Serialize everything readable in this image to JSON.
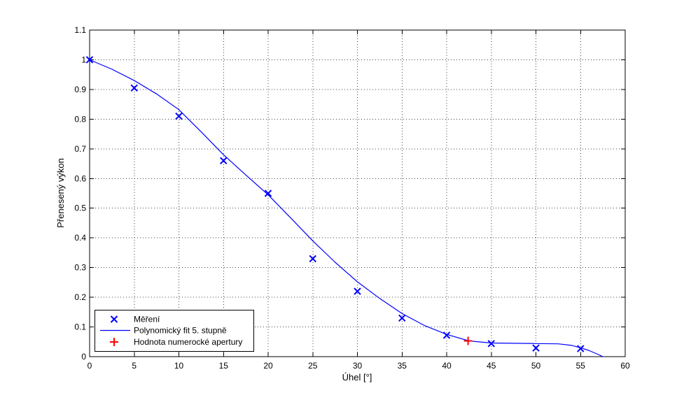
{
  "figure": {
    "background": "#ffffff"
  },
  "chart_data": {
    "type": "scatter",
    "title": "",
    "xlabel": "Úhel [°]",
    "ylabel": "Přenesený výkon",
    "xlim": [
      0,
      60
    ],
    "ylim": [
      0,
      1.1
    ],
    "grid": true,
    "x_ticks": [
      0,
      5,
      10,
      15,
      20,
      25,
      30,
      35,
      40,
      45,
      50,
      55,
      60
    ],
    "x_tick_labels": [
      "0",
      "5",
      "10",
      "15",
      "20",
      "25",
      "30",
      "35",
      "40",
      "45",
      "50",
      "55",
      "60"
    ],
    "y_ticks": [
      0,
      0.1,
      0.2,
      0.3,
      0.4,
      0.5,
      0.6,
      0.7,
      0.8,
      0.9,
      1.0,
      1.1
    ],
    "y_tick_labels": [
      "0",
      "0.1",
      "0.2",
      "0.3",
      "0.4",
      "0.5",
      "0.6",
      "0.7",
      "0.8",
      "0.9",
      "1",
      "1.1"
    ],
    "legend": {
      "position": "lower-left",
      "border": true
    },
    "series": [
      {
        "name": "Měření",
        "type": "scatter",
        "marker": "x",
        "color": "#0000ff",
        "x": [
          0,
          5,
          10,
          15,
          20,
          25,
          30,
          35,
          40,
          45,
          50,
          55
        ],
        "y": [
          1.0,
          0.905,
          0.81,
          0.66,
          0.55,
          0.33,
          0.22,
          0.13,
          0.072,
          0.044,
          0.029,
          0.027
        ]
      },
      {
        "name": "Polynomický fit 5. stupně",
        "type": "line",
        "color": "#0000ff",
        "x": [
          0,
          2.5,
          5,
          7.5,
          10,
          12.5,
          15,
          17.5,
          20,
          22.5,
          25,
          27.5,
          30,
          32.5,
          35,
          37.5,
          40,
          42.5,
          45,
          47.5,
          50,
          52.5,
          54,
          55,
          56,
          57,
          57.5
        ],
        "y": [
          1.0,
          0.968,
          0.93,
          0.885,
          0.832,
          0.757,
          0.68,
          0.612,
          0.545,
          0.468,
          0.39,
          0.318,
          0.252,
          0.196,
          0.145,
          0.105,
          0.075,
          0.053,
          0.046,
          0.045,
          0.044,
          0.043,
          0.038,
          0.03,
          0.02,
          0.007,
          0.0
        ]
      },
      {
        "name": "Hodnota numerocké apertury",
        "type": "scatter",
        "marker": "+",
        "color": "#ff0000",
        "x": [
          42.4
        ],
        "y": [
          0.053
        ]
      }
    ],
    "colors": {
      "axis": "#000000",
      "grid": "#444444",
      "background": "#ffffff",
      "measurement": "#0000ff",
      "fit": "#0000ff",
      "na_marker": "#ff0000"
    }
  }
}
